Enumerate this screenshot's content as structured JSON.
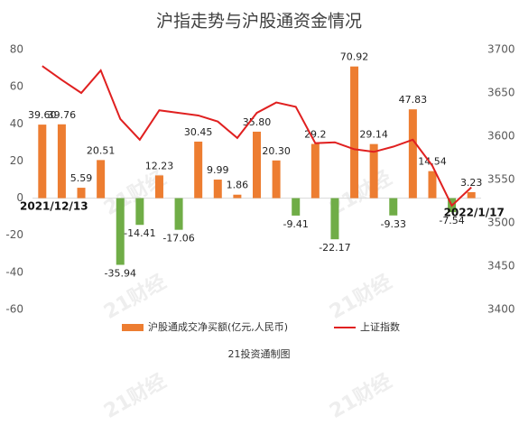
{
  "chart_data": {
    "type": "bar_line",
    "title": "沪指走势与沪股通资金情况",
    "source": "21投资通制图",
    "watermark": "21财经",
    "categories": [
      "2021/12/13",
      null,
      null,
      null,
      null,
      null,
      null,
      null,
      null,
      null,
      null,
      null,
      null,
      null,
      null,
      null,
      null,
      null,
      null,
      null,
      null,
      null,
      "2022/1/17"
    ],
    "series": [
      {
        "name": "沪股通成交净买额(亿元,人民币)",
        "type": "bar",
        "color": "#ed7d31",
        "negative_color": "#70ad47",
        "values": [
          39.6,
          39.76,
          5.59,
          20.51,
          -35.94,
          -14.41,
          12.23,
          -17.06,
          30.45,
          9.99,
          1.86,
          35.8,
          20.3,
          -9.41,
          29.2,
          -22.17,
          70.92,
          29.14,
          -9.33,
          47.83,
          14.54,
          -7.54,
          3.23
        ],
        "value_labels": [
          "39.60",
          "39.76",
          "5.59",
          "20.51",
          "-35.94",
          "-14.41",
          "12.23",
          "-17.06",
          "30.45",
          "9.99",
          "1.86",
          "35.80",
          "20.30",
          "-9.41",
          "29.2",
          "-22.17",
          "70.92",
          "29.14",
          "-9.33",
          "47.83",
          "14.54",
          "-7.54",
          "3.23"
        ]
      },
      {
        "name": "上证指数",
        "type": "line",
        "axis": "y2",
        "color": "#e02020",
        "values": [
          3681,
          3665,
          3650,
          3676,
          3620,
          3596,
          3630,
          3627,
          3624,
          3617,
          3598,
          3627,
          3639,
          3634,
          3592,
          3593,
          3585,
          3582,
          3588,
          3596,
          3566,
          3520,
          3541
        ]
      }
    ],
    "ylim": [
      -60,
      80
    ],
    "yticks": [
      -60,
      -40,
      -20,
      0,
      20,
      40,
      60,
      80
    ],
    "y2lim": [
      3400,
      3700
    ],
    "y2ticks": [
      3400,
      3450,
      3500,
      3550,
      3600,
      3650,
      3700
    ],
    "grid": false
  }
}
